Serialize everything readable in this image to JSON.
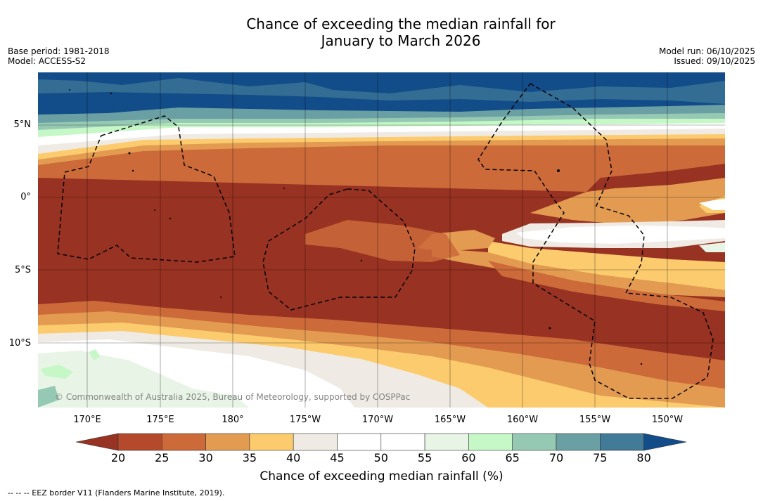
{
  "title": {
    "line1": "Chance of exceeding the median rainfall for",
    "line2": "January to March 2026"
  },
  "meta": {
    "base_period": "Base period: 1981-2018",
    "model": "Model: ACCESS-S2",
    "model_run": "Model run: 06/10/2025",
    "issued": "Issued: 09/10/2025"
  },
  "map": {
    "lat_labels": [
      "5°N",
      "0°",
      "5°S",
      "10°S"
    ],
    "lon_labels": [
      "170°E",
      "175°E",
      "180°",
      "175°W",
      "170°W",
      "165°W",
      "160°W",
      "155°W",
      "150°W"
    ],
    "copyright": "© Commonwealth of Australia 2025, Bureau of Meteorology, supported by COSPPac"
  },
  "legend": {
    "ticks": [
      "20",
      "25",
      "30",
      "35",
      "40",
      "45",
      "50",
      "55",
      "60",
      "65",
      "70",
      "75",
      "80"
    ],
    "colors": [
      "#983222",
      "#b5492c",
      "#cc6a39",
      "#e29b51",
      "#fccb6e",
      "#efeae4",
      "#ffffff",
      "#ffffff",
      "#e8f5e6",
      "#c6f7c7",
      "#96c9b3",
      "#6aa0a3",
      "#427b98",
      "#124d89"
    ],
    "label": "Chance of exceeding median rainfall (%)"
  },
  "footnote": "--  --  -- EEZ border V11 (Flanders Marine Institute, 2019)."
}
